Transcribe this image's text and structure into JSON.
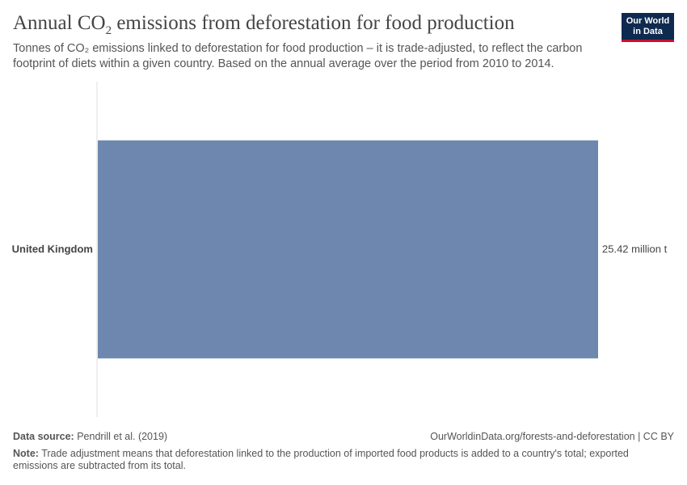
{
  "header": {
    "title_pre": "Annual CO",
    "title_sub": "2",
    "title_post": " emissions from deforestation for food production",
    "subtitle": "Tonnes of CO₂ emissions linked to deforestation for food production – it is trade-adjusted, to reflect the carbon footprint of diets within a given country. Based on the annual average over the period from 2010 to 2014."
  },
  "logo": {
    "line1": "Our World",
    "line2": "in Data"
  },
  "footer": {
    "source_label": "Data source:",
    "source_text": " Pendrill et al. (2019)",
    "url": "OurWorldinData.org/forests-and-deforestation | CC BY",
    "note_label": "Note:",
    "note_text": " Trade adjustment means that deforestation linked to the production of imported food products is added to a country's total; exported emissions are subtracted from its total."
  },
  "colors": {
    "bar": "#6d87ae",
    "axis": "#dddddd",
    "text": "#444444"
  },
  "chart_data": {
    "type": "bar",
    "orientation": "horizontal",
    "categories": [
      "United Kingdom"
    ],
    "values": [
      25420000
    ],
    "value_labels": [
      "25.42 million t"
    ],
    "unit": "t",
    "xlim": [
      0,
      25420000
    ]
  }
}
